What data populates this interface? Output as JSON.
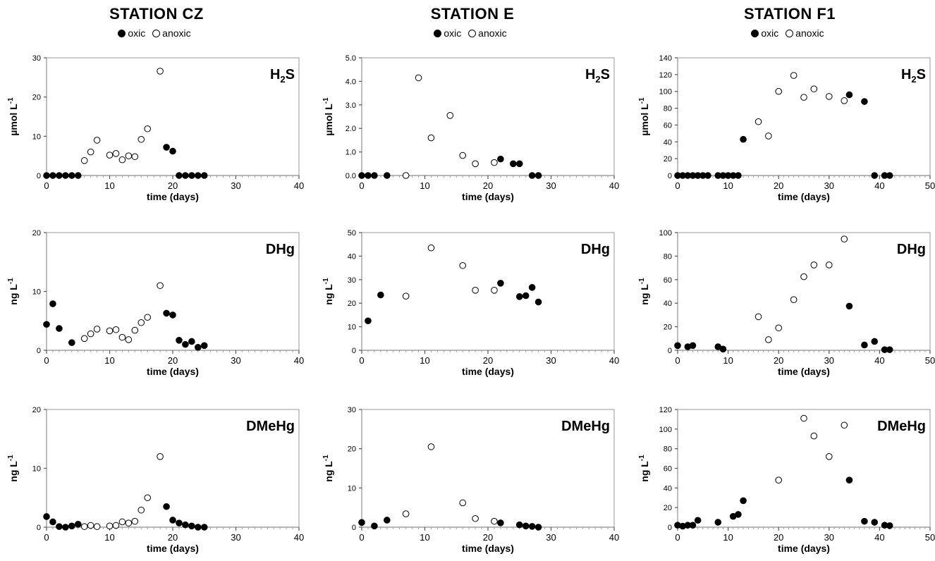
{
  "stations": [
    {
      "title": "STATION CZ",
      "legend": {
        "oxic": "oxic",
        "anoxic": "anoxic"
      }
    },
    {
      "title": "STATION E",
      "legend": {
        "oxic": "oxic",
        "anoxic": "anoxic"
      }
    },
    {
      "title": "STATION F1",
      "legend": {
        "oxic": "oxic",
        "anoxic": "anoxic"
      }
    }
  ],
  "colors": {
    "oxic": "#000000",
    "anoxic": "#ffffff",
    "axis": "#a0a0a0",
    "plot_border": "#999999"
  },
  "chart_data": [
    {
      "type": "scatter",
      "station": "STATION CZ",
      "panel_label": "H2S",
      "label_main": "H",
      "label_sub": "2",
      "label_tail": "S",
      "xlabel": "time (days)",
      "ylabel": "µmol L",
      "ylabel_sup": "-1",
      "xlim": [
        0,
        40
      ],
      "ylim": [
        0,
        30
      ],
      "xticks": [
        0,
        10,
        20,
        30,
        40
      ],
      "yticks": [
        0,
        10,
        20,
        30
      ],
      "ytick_labels": [
        "0",
        "10",
        "20",
        "30"
      ],
      "series": [
        {
          "name": "oxic",
          "points": [
            [
              0,
              0
            ],
            [
              1,
              0
            ],
            [
              2,
              0
            ],
            [
              3,
              0
            ],
            [
              4,
              0
            ],
            [
              5,
              0
            ],
            [
              19,
              7.2
            ],
            [
              20,
              6.2
            ],
            [
              21,
              0
            ],
            [
              22,
              0
            ],
            [
              23,
              0
            ],
            [
              24,
              0
            ],
            [
              25,
              0
            ]
          ]
        },
        {
          "name": "anoxic",
          "points": [
            [
              6,
              3.8
            ],
            [
              7,
              6
            ],
            [
              8,
              9
            ],
            [
              10,
              5.2
            ],
            [
              11,
              5.6
            ],
            [
              12,
              4
            ],
            [
              13,
              5
            ],
            [
              14,
              4.8
            ],
            [
              15,
              9.2
            ],
            [
              16,
              11.9
            ],
            [
              18,
              26.6
            ]
          ]
        }
      ]
    },
    {
      "type": "scatter",
      "station": "STATION E",
      "panel_label": "H2S",
      "label_main": "H",
      "label_sub": "2",
      "label_tail": "S",
      "xlabel": "time (days)",
      "ylabel": "µmol L",
      "ylabel_sup": "-1",
      "xlim": [
        0,
        40
      ],
      "ylim": [
        0,
        5
      ],
      "xticks": [
        0,
        10,
        20,
        30,
        40
      ],
      "yticks": [
        0,
        1,
        2,
        3,
        4,
        5
      ],
      "ytick_labels": [
        "0.0",
        "1.0",
        "2.0",
        "3.0",
        "4.0",
        "5.0"
      ],
      "series": [
        {
          "name": "oxic",
          "points": [
            [
              0,
              0
            ],
            [
              1,
              0
            ],
            [
              2,
              0
            ],
            [
              4,
              0
            ],
            [
              22,
              0.7
            ],
            [
              24,
              0.5
            ],
            [
              25,
              0.5
            ],
            [
              27,
              0
            ],
            [
              28,
              0
            ]
          ]
        },
        {
          "name": "anoxic",
          "points": [
            [
              7,
              0
            ],
            [
              9,
              4.15
            ],
            [
              11,
              1.6
            ],
            [
              14,
              2.55
            ],
            [
              16,
              0.85
            ],
            [
              18,
              0.5
            ],
            [
              21,
              0.55
            ]
          ]
        }
      ]
    },
    {
      "type": "scatter",
      "station": "STATION F1",
      "panel_label": "H2S",
      "label_main": "H",
      "label_sub": "2",
      "label_tail": "S",
      "xlabel": "time (days)",
      "ylabel": "µmol L",
      "ylabel_sup": "-1",
      "xlim": [
        0,
        50
      ],
      "ylim": [
        0,
        140
      ],
      "xticks": [
        0,
        10,
        20,
        30,
        40,
        50
      ],
      "yticks": [
        0,
        20,
        40,
        60,
        80,
        100,
        120,
        140
      ],
      "ytick_labels": [
        "0",
        "20",
        "40",
        "60",
        "80",
        "100",
        "120",
        "140"
      ],
      "series": [
        {
          "name": "oxic",
          "points": [
            [
              0,
              0
            ],
            [
              1,
              0
            ],
            [
              2,
              0
            ],
            [
              3,
              0
            ],
            [
              4,
              0
            ],
            [
              5,
              0
            ],
            [
              6,
              0
            ],
            [
              8,
              0
            ],
            [
              9,
              0
            ],
            [
              10,
              0
            ],
            [
              11,
              0
            ],
            [
              12,
              0
            ],
            [
              13,
              43
            ],
            [
              34,
              96
            ],
            [
              37,
              88
            ],
            [
              39,
              0
            ],
            [
              41,
              0
            ],
            [
              42,
              0
            ]
          ]
        },
        {
          "name": "anoxic",
          "points": [
            [
              16,
              64
            ],
            [
              18,
              47
            ],
            [
              20,
              100
            ],
            [
              23,
              119
            ],
            [
              25,
              93
            ],
            [
              27,
              103
            ],
            [
              30,
              94
            ],
            [
              33,
              89
            ]
          ]
        }
      ]
    },
    {
      "type": "scatter",
      "station": "STATION CZ",
      "panel_label": "DHg",
      "xlabel": "time (days)",
      "ylabel": "ng L",
      "ylabel_sup": "-1",
      "xlim": [
        0,
        40
      ],
      "ylim": [
        0,
        20
      ],
      "xticks": [
        0,
        10,
        20,
        30,
        40
      ],
      "yticks": [
        0,
        10,
        20
      ],
      "ytick_labels": [
        "0",
        "10",
        "20"
      ],
      "series": [
        {
          "name": "oxic",
          "points": [
            [
              0,
              4.4
            ],
            [
              1,
              7.9
            ],
            [
              2,
              3.7
            ],
            [
              4,
              1.3
            ],
            [
              19,
              6.3
            ],
            [
              20,
              6
            ],
            [
              21,
              1.7
            ],
            [
              22,
              1
            ],
            [
              23,
              1.5
            ],
            [
              24,
              0.5
            ],
            [
              25,
              0.8
            ]
          ]
        },
        {
          "name": "anoxic",
          "points": [
            [
              6,
              2
            ],
            [
              7,
              2.8
            ],
            [
              8,
              3.6
            ],
            [
              10,
              3.3
            ],
            [
              11,
              3.5
            ],
            [
              12,
              2.2
            ],
            [
              13,
              1.8
            ],
            [
              14,
              3.4
            ],
            [
              15,
              4.7
            ],
            [
              16,
              5.6
            ],
            [
              18,
              11
            ]
          ]
        }
      ]
    },
    {
      "type": "scatter",
      "station": "STATION E",
      "panel_label": "DHg",
      "xlabel": "time (days)",
      "ylabel": "ng L",
      "ylabel_sup": "-1",
      "xlim": [
        0,
        40
      ],
      "ylim": [
        0,
        50
      ],
      "xticks": [
        0,
        10,
        20,
        30,
        40
      ],
      "yticks": [
        0,
        10,
        20,
        30,
        40,
        50
      ],
      "ytick_labels": [
        "0",
        "10",
        "20",
        "30",
        "40",
        "50"
      ],
      "series": [
        {
          "name": "oxic",
          "points": [
            [
              1,
              12.5
            ],
            [
              3,
              23.5
            ],
            [
              22,
              28.5
            ],
            [
              25,
              22.8
            ],
            [
              26,
              23.2
            ],
            [
              27,
              26.7
            ],
            [
              28,
              20.5
            ]
          ]
        },
        {
          "name": "anoxic",
          "points": [
            [
              7,
              23
            ],
            [
              11,
              43.5
            ],
            [
              16,
              36
            ],
            [
              18,
              25.5
            ],
            [
              21,
              25.5
            ]
          ]
        }
      ]
    },
    {
      "type": "scatter",
      "station": "STATION F1",
      "panel_label": "DHg",
      "xlabel": "time (days)",
      "ylabel": "ng L",
      "ylabel_sup": "-1",
      "xlim": [
        0,
        50
      ],
      "ylim": [
        0,
        100
      ],
      "xticks": [
        0,
        10,
        20,
        30,
        40,
        50
      ],
      "yticks": [
        0,
        20,
        40,
        60,
        80,
        100
      ],
      "ytick_labels": [
        "0",
        "20",
        "40",
        "60",
        "80",
        "100"
      ],
      "series": [
        {
          "name": "oxic",
          "points": [
            [
              0,
              4
            ],
            [
              2,
              3
            ],
            [
              3,
              4
            ],
            [
              8,
              3
            ],
            [
              9,
              1
            ],
            [
              34,
              37.5
            ],
            [
              37,
              4.5
            ],
            [
              39,
              7.5
            ],
            [
              41,
              0.5
            ],
            [
              42,
              0.5
            ]
          ]
        },
        {
          "name": "anoxic",
          "points": [
            [
              16,
              28.5
            ],
            [
              18,
              9
            ],
            [
              20,
              19
            ],
            [
              23,
              43
            ],
            [
              25,
              62.5
            ],
            [
              27,
              72.5
            ],
            [
              30,
              72.5
            ],
            [
              33,
              94.5
            ]
          ]
        }
      ]
    },
    {
      "type": "scatter",
      "station": "STATION CZ",
      "panel_label": "DMeHg",
      "xlabel": "time (days)",
      "ylabel": "ng L",
      "ylabel_sup": "-1",
      "xlim": [
        0,
        40
      ],
      "ylim": [
        0,
        20
      ],
      "xticks": [
        0,
        10,
        20,
        30,
        40
      ],
      "yticks": [
        0,
        10,
        20
      ],
      "ytick_labels": [
        "0",
        "10",
        "20"
      ],
      "series": [
        {
          "name": "oxic",
          "points": [
            [
              0,
              1.8
            ],
            [
              1,
              0.9
            ],
            [
              2,
              0.1
            ],
            [
              3,
              0
            ],
            [
              4,
              0.2
            ],
            [
              5,
              0.5
            ],
            [
              19,
              3.5
            ],
            [
              20,
              1.2
            ],
            [
              21,
              0.7
            ],
            [
              22,
              0.4
            ],
            [
              23,
              0.2
            ],
            [
              24,
              0
            ],
            [
              25,
              0
            ]
          ]
        },
        {
          "name": "anoxic",
          "points": [
            [
              6,
              0.1
            ],
            [
              7,
              0.3
            ],
            [
              8,
              0.1
            ],
            [
              10,
              0.2
            ],
            [
              11,
              0.3
            ],
            [
              12,
              0.9
            ],
            [
              13,
              0.7
            ],
            [
              14,
              1
            ],
            [
              15,
              2.9
            ],
            [
              16,
              5
            ],
            [
              18,
              12
            ]
          ]
        }
      ]
    },
    {
      "type": "scatter",
      "station": "STATION E",
      "panel_label": "DMeHg",
      "xlabel": "time (days)",
      "ylabel": "ng L",
      "ylabel_sup": "-1",
      "xlim": [
        0,
        40
      ],
      "ylim": [
        0,
        30
      ],
      "xticks": [
        0,
        10,
        20,
        30,
        40
      ],
      "yticks": [
        0,
        10,
        20,
        30
      ],
      "ytick_labels": [
        "0",
        "10",
        "20",
        "30"
      ],
      "series": [
        {
          "name": "oxic",
          "points": [
            [
              0,
              1.2
            ],
            [
              2,
              0.3
            ],
            [
              4,
              1.8
            ],
            [
              22,
              1.1
            ],
            [
              25,
              0.6
            ],
            [
              26,
              0.3
            ],
            [
              27,
              0.2
            ],
            [
              28,
              0
            ]
          ]
        },
        {
          "name": "anoxic",
          "points": [
            [
              7,
              3.4
            ],
            [
              11,
              20.5
            ],
            [
              16,
              6.2
            ],
            [
              18,
              2.2
            ],
            [
              21,
              1.5
            ]
          ]
        }
      ]
    },
    {
      "type": "scatter",
      "station": "STATION F1",
      "panel_label": "DMeHg",
      "xlabel": "time (days)",
      "ylabel": "ng L",
      "ylabel_sup": "-1",
      "xlim": [
        0,
        50
      ],
      "ylim": [
        0,
        120
      ],
      "xticks": [
        0,
        10,
        20,
        30,
        40,
        50
      ],
      "yticks": [
        0,
        20,
        40,
        60,
        80,
        100,
        120
      ],
      "ytick_labels": [
        "0",
        "20",
        "40",
        "60",
        "80",
        "100",
        "120"
      ],
      "series": [
        {
          "name": "oxic",
          "points": [
            [
              0,
              2
            ],
            [
              1,
              1
            ],
            [
              2,
              2
            ],
            [
              3,
              2
            ],
            [
              4,
              7
            ],
            [
              8,
              5
            ],
            [
              11,
              11
            ],
            [
              12,
              13
            ],
            [
              13,
              27
            ],
            [
              34,
              48
            ],
            [
              37,
              6
            ],
            [
              39,
              5
            ],
            [
              41,
              2
            ],
            [
              42,
              1.5
            ]
          ]
        },
        {
          "name": "anoxic",
          "points": [
            [
              20,
              48
            ],
            [
              25,
              111
            ],
            [
              27,
              93
            ],
            [
              30,
              72
            ],
            [
              33,
              104
            ]
          ]
        }
      ]
    }
  ]
}
